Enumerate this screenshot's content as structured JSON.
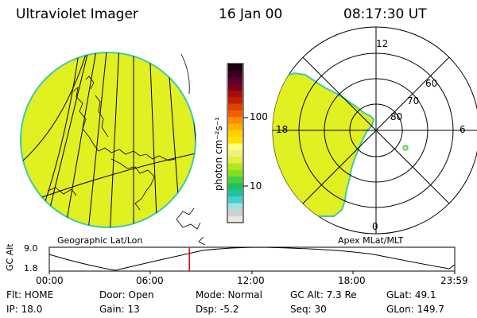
{
  "header": {
    "instrument": "Ultraviolet Imager",
    "date": "16 Jan 00",
    "time": "08:17:30 UT"
  },
  "left_panel": {
    "caption": "Geographic Lat/Lon"
  },
  "right_panel": {
    "caption": "Apex MLat/MLT",
    "mlt_labels": {
      "top": "12",
      "left": "18",
      "right": "6",
      "bottom": "0"
    },
    "mlat_labels": [
      "60",
      "70",
      "80"
    ]
  },
  "colorbar": {
    "unit_label": "photon cm⁻²s⁻¹",
    "ticks": [
      "100",
      "10"
    ],
    "colors": [
      "#1a0010",
      "#3a0020",
      "#5a0030",
      "#7a0020",
      "#a01010",
      "#c02000",
      "#e04000",
      "#f06000",
      "#ff8a00",
      "#ffb000",
      "#ffd000",
      "#ffe000",
      "#ffff80",
      "#f0f080",
      "#e0f040",
      "#b0e820",
      "#80e020",
      "#40d040",
      "#20c060",
      "#20c0a0",
      "#40d0d0",
      "#a0e0e0",
      "#d0d0d0",
      "#e8e8e8"
    ]
  },
  "altitude_plot": {
    "ylabel": "GC Alt",
    "ytick_top": "9.0",
    "ytick_bottom": "1.8",
    "xticks": [
      "00:00",
      "06:00",
      "12:00",
      "18:00",
      "23:59"
    ],
    "marker_hour": 8.29
  },
  "info": {
    "flt": "Flt: HOME",
    "ip": "IP: 18.0",
    "door": "Door: Open",
    "gain": "Gain: 13",
    "mode": "Mode: Normal",
    "dsp": "Dsp:    -5.2",
    "gcalt": "GC Alt: 7.3 Re",
    "seq": "Seq: 30",
    "glat": "GLat:   49.1",
    "glon": "GLon: 149.7"
  },
  "colors": {
    "image_fill": "#e0f020",
    "image_edge": "#40c8b0",
    "marker": "#e00000"
  }
}
